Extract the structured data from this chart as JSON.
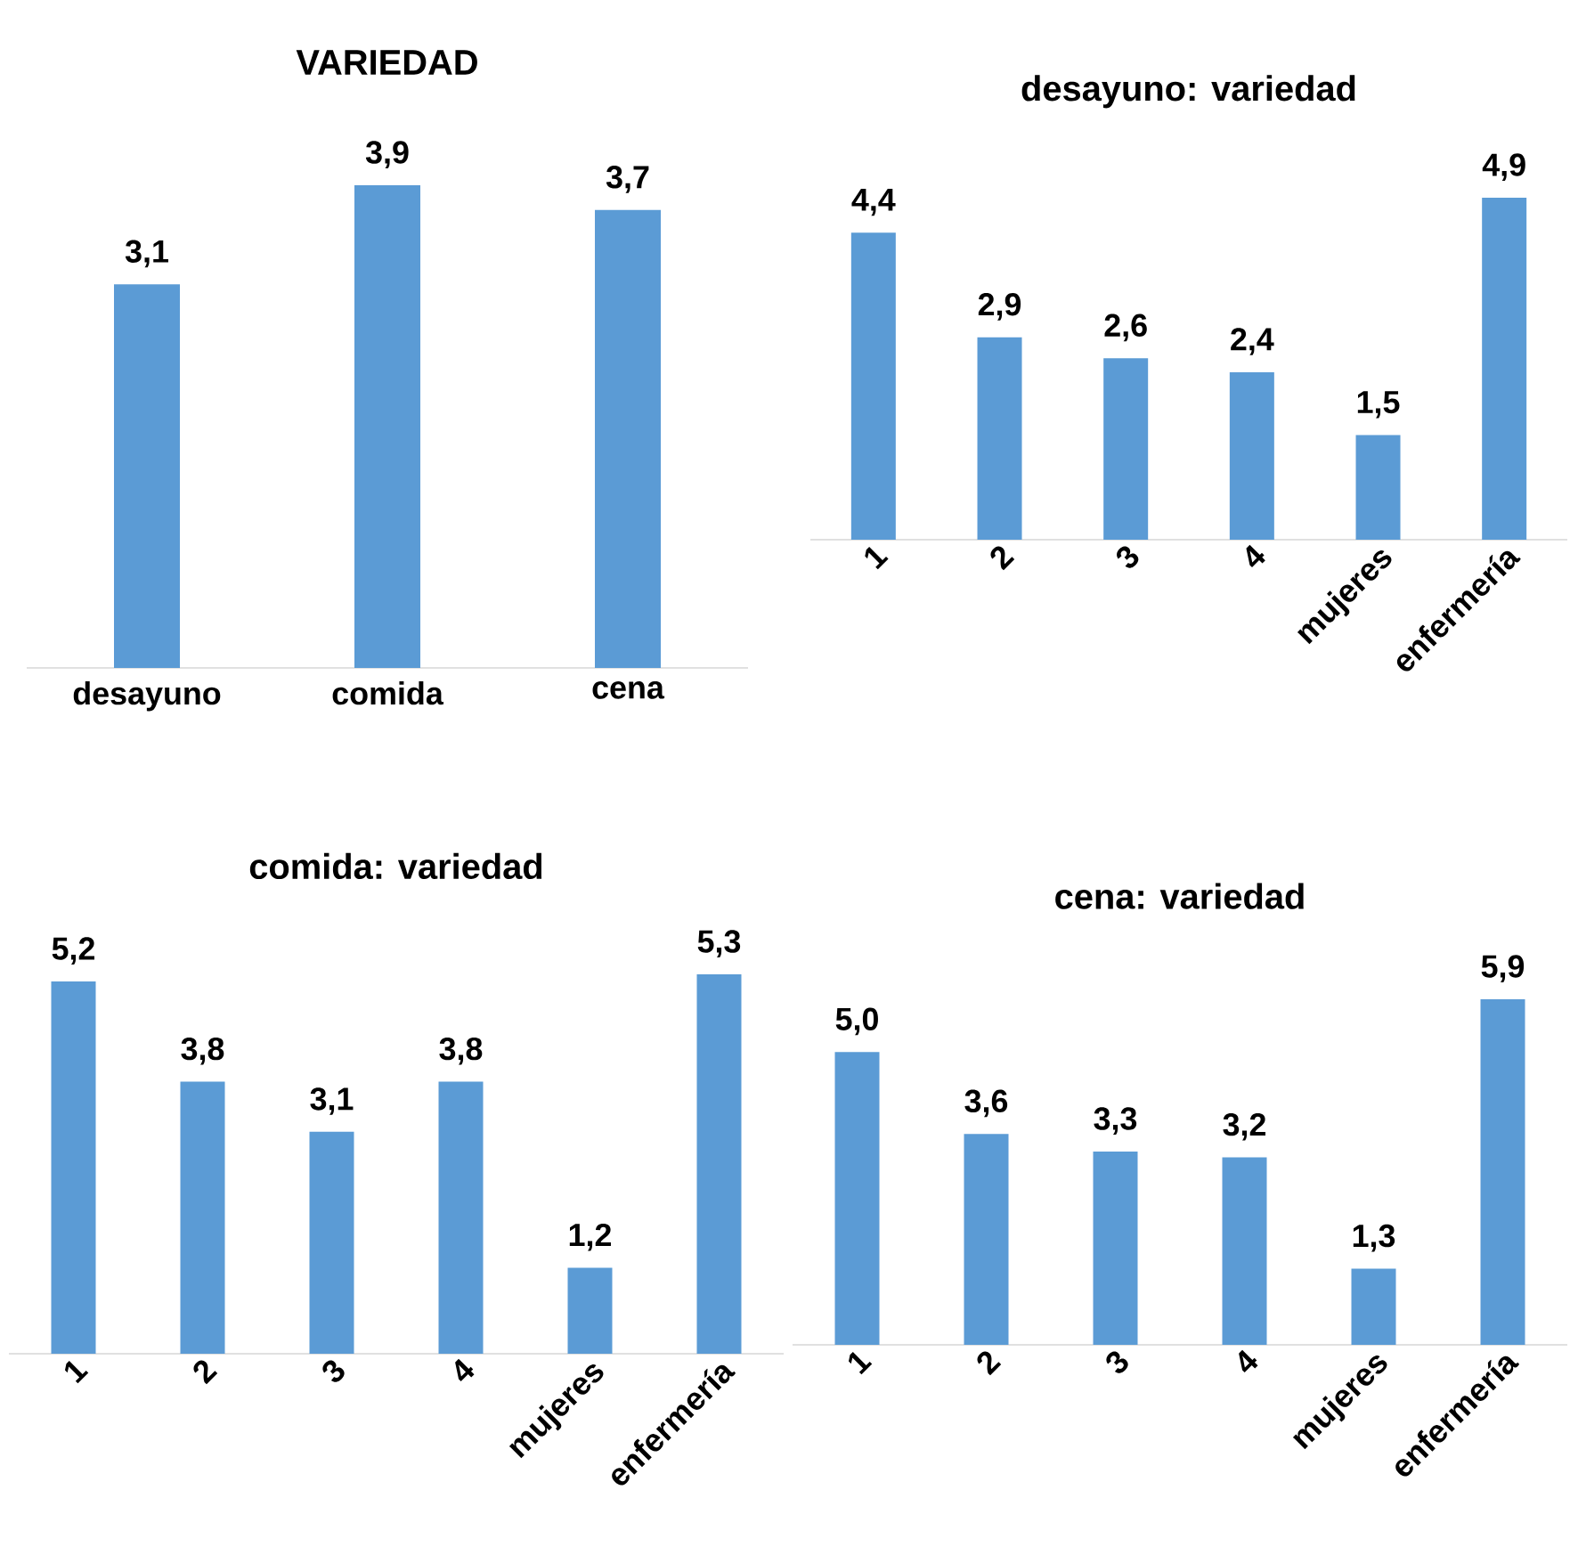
{
  "chart_data": [
    {
      "type": "bar",
      "title": "VARIEDAD",
      "categories": [
        "desayuno",
        "comida",
        "cena"
      ],
      "values": [
        3.1,
        3.9,
        3.7
      ],
      "value_labels": [
        "3,1",
        "3,9",
        "3,7"
      ],
      "color": "#5b9bd5"
    },
    {
      "type": "bar",
      "title": "desayuno: variedad",
      "categories": [
        "1",
        "2",
        "3",
        "4",
        "mujeres",
        "enfermería"
      ],
      "values": [
        4.4,
        2.9,
        2.6,
        2.4,
        1.5,
        4.9
      ],
      "value_labels": [
        "4,4",
        "2,9",
        "2,6",
        "2,4",
        "1,5",
        "4,9"
      ],
      "color": "#5b9bd5"
    },
    {
      "type": "bar",
      "title": "comida: variedad",
      "categories": [
        "1",
        "2",
        "3",
        "4",
        "mujeres",
        "enfermería"
      ],
      "values": [
        5.2,
        3.8,
        3.1,
        3.8,
        1.2,
        5.3
      ],
      "value_labels": [
        "5,2",
        "3,8",
        "3,1",
        "3,8",
        "1,2",
        "5,3"
      ],
      "color": "#5b9bd5"
    },
    {
      "type": "bar",
      "title": "cena: variedad",
      "categories": [
        "1",
        "2",
        "3",
        "4",
        "mujeres",
        "enfermería"
      ],
      "values": [
        5.0,
        3.6,
        3.3,
        3.2,
        1.3,
        5.9
      ],
      "value_labels": [
        "5,0",
        "3,6",
        "3,3",
        "3,2",
        "1,3",
        "5,9"
      ],
      "color": "#5b9bd5"
    }
  ]
}
